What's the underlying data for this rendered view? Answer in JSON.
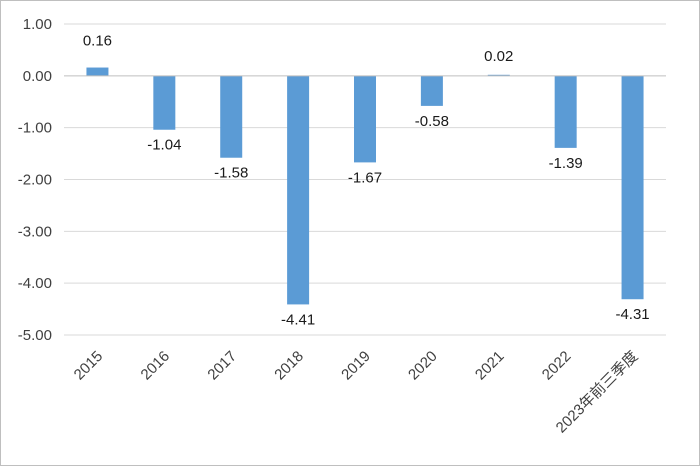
{
  "chart_data": {
    "type": "bar",
    "categories": [
      "2015",
      "2016",
      "2017",
      "2018",
      "2019",
      "2020",
      "2021",
      "2022",
      "2023年前三季度"
    ],
    "values": [
      0.16,
      -1.04,
      -1.58,
      -4.41,
      -1.67,
      -0.58,
      0.02,
      -1.39,
      -4.31
    ],
    "value_labels": [
      "0.16",
      "-1.04",
      "-1.58",
      "-4.41",
      "-1.67",
      "-0.58",
      "0.02",
      "-1.39",
      "-4.31"
    ],
    "yticks": [
      1.0,
      0.0,
      -1.0,
      -2.0,
      -3.0,
      -4.0,
      -5.0
    ],
    "ytick_labels": [
      "1.00",
      "0.00",
      "-1.00",
      "-2.00",
      "-3.00",
      "-4.00",
      "-5.00"
    ],
    "ylim": [
      -5,
      1
    ],
    "grid": true,
    "legend": false,
    "bar_color": "#5b9bd5",
    "grid_color": "#d9d9d9"
  }
}
